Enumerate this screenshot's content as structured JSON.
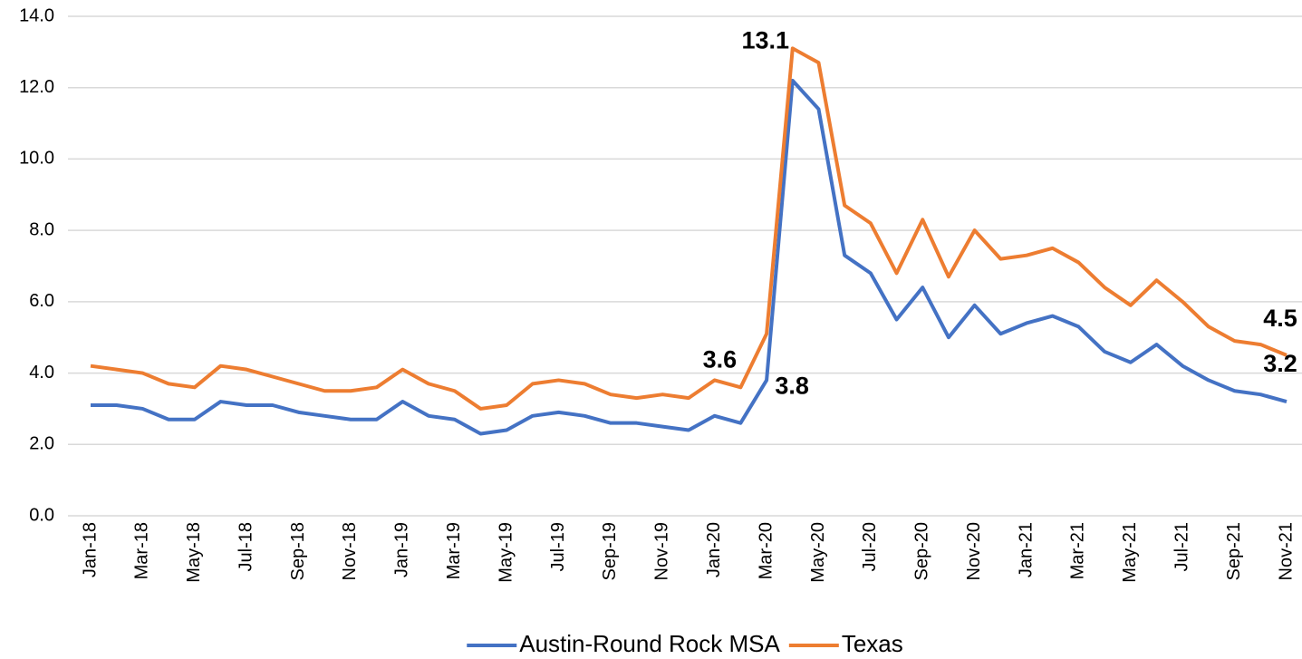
{
  "chart_data": {
    "type": "line",
    "categories": [
      "Jan-18",
      null,
      "Mar-18",
      null,
      "May-18",
      null,
      "Jul-18",
      null,
      "Sep-18",
      null,
      "Nov-18",
      null,
      "Jan-19",
      null,
      "Mar-19",
      null,
      "May-19",
      null,
      "Jul-19",
      null,
      "Sep-19",
      null,
      "Nov-19",
      null,
      "Jan-20",
      null,
      "Mar-20",
      null,
      "May-20",
      null,
      "Jul-20",
      null,
      "Sep-20",
      null,
      "Nov-20",
      null,
      "Jan-21",
      null,
      "Mar-21",
      null,
      "May-21",
      null,
      "Jul-21",
      null,
      "Sep-21",
      null,
      "Nov-21"
    ],
    "series": [
      {
        "name": "Austin-Round Rock MSA",
        "color": "#4472c4",
        "values": [
          3.1,
          3.1,
          3.0,
          2.7,
          2.7,
          3.2,
          3.1,
          3.1,
          2.9,
          2.8,
          2.7,
          2.7,
          3.2,
          2.8,
          2.7,
          2.3,
          2.4,
          2.8,
          2.9,
          2.8,
          2.6,
          2.6,
          2.5,
          2.4,
          2.8,
          2.6,
          3.8,
          12.2,
          11.4,
          7.3,
          6.8,
          5.5,
          6.4,
          5.0,
          5.9,
          5.1,
          5.4,
          5.6,
          5.3,
          4.6,
          4.3,
          4.8,
          4.2,
          3.8,
          3.5,
          3.4,
          3.2
        ],
        "value_labels": [
          null,
          null,
          null,
          null,
          null,
          null,
          null,
          null,
          null,
          null,
          null,
          null,
          null,
          null,
          null,
          null,
          null,
          null,
          null,
          null,
          null,
          null,
          null,
          null,
          null,
          null,
          "3.8",
          null,
          null,
          null,
          null,
          null,
          null,
          null,
          null,
          null,
          null,
          null,
          null,
          null,
          null,
          null,
          null,
          null,
          null,
          null,
          "3.2"
        ]
      },
      {
        "name": "Texas",
        "color": "#ed7d31",
        "values": [
          4.2,
          4.1,
          4.0,
          3.7,
          3.6,
          4.2,
          4.1,
          3.9,
          3.7,
          3.5,
          3.5,
          3.6,
          4.1,
          3.7,
          3.5,
          3.0,
          3.1,
          3.7,
          3.8,
          3.7,
          3.4,
          3.3,
          3.4,
          3.3,
          3.8,
          3.6,
          5.1,
          13.1,
          12.7,
          8.7,
          8.2,
          6.8,
          8.3,
          6.7,
          8.0,
          7.2,
          7.3,
          7.5,
          7.1,
          6.4,
          5.9,
          6.6,
          6.0,
          5.3,
          4.9,
          4.8,
          4.5
        ],
        "value_labels": [
          null,
          null,
          null,
          null,
          null,
          null,
          null,
          null,
          null,
          null,
          null,
          null,
          null,
          null,
          null,
          null,
          null,
          null,
          null,
          null,
          null,
          null,
          null,
          null,
          null,
          "3.6",
          null,
          "13.1",
          null,
          null,
          null,
          null,
          null,
          null,
          null,
          null,
          null,
          null,
          null,
          null,
          null,
          null,
          null,
          null,
          null,
          null,
          "4.5"
        ]
      }
    ],
    "ylim": [
      0,
      14
    ],
    "yticks": [
      {
        "value": 0,
        "label": "0.0"
      },
      {
        "value": 2,
        "label": "2.0"
      },
      {
        "value": 4,
        "label": "4.0"
      },
      {
        "value": 6,
        "label": "6.0"
      },
      {
        "value": 8,
        "label": "8.0"
      },
      {
        "value": 10,
        "label": "10.0"
      },
      {
        "value": 12,
        "label": "12.0"
      },
      {
        "value": 14,
        "label": "14.0"
      }
    ],
    "grid": true,
    "legend": "bottom"
  }
}
